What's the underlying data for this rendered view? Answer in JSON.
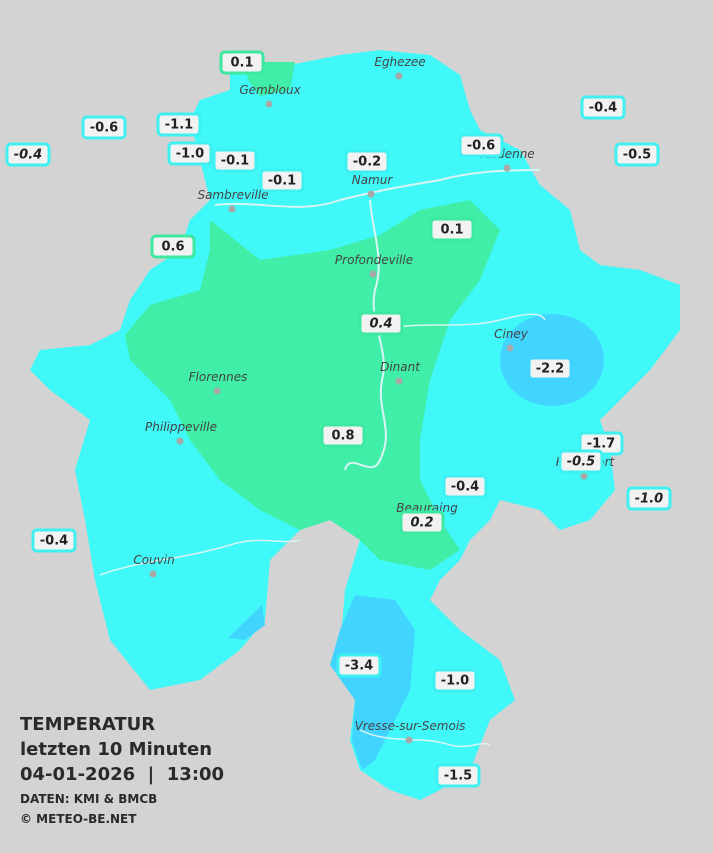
{
  "legend": {
    "title": "TEMPERATUR",
    "subtitle": "letzten 10 Minuten",
    "datetime": "04-01-2026  |  13:00",
    "source": "DATEN: KMI & BMCB",
    "copyright": "© METEO-BE.NET"
  },
  "cities": [
    "Eghezee",
    "Gembloux",
    "Andenne",
    "Namur",
    "Sambreville",
    "Profondeville",
    "Ciney",
    "Dinant",
    "Florennes",
    "Philippeville",
    "Rochefort",
    "Beauraing",
    "Couvin",
    "Vresse-sur-Semois"
  ],
  "stations": [
    {
      "label": "0.1",
      "color": "#3fe8a0"
    },
    {
      "label": "-0.4",
      "color": "#3ff0f0"
    },
    {
      "label": "-0.6",
      "color": "#3ff0f0"
    },
    {
      "label": "-1.1",
      "color": "#3ff0f0"
    },
    {
      "label": "-0.4",
      "color": "#3ff0f0",
      "italic": true
    },
    {
      "label": "-1.0",
      "color": "#3ff0f0"
    },
    {
      "label": "-0.1",
      "color": "#3ff0f0"
    },
    {
      "label": "-0.2",
      "color": "#3ff0f0"
    },
    {
      "label": "-0.6",
      "color": "#3ff0f0"
    },
    {
      "label": "-0.5",
      "color": "#3ff0f0"
    },
    {
      "label": "-0.1",
      "color": "#3ff0f0"
    },
    {
      "label": "0.1",
      "color": "#3fe8a0"
    },
    {
      "label": "0.6",
      "color": "#3fe8a0"
    },
    {
      "label": "0.4",
      "color": "#3fe8a0",
      "italic": true
    },
    {
      "label": "-2.2",
      "color": "#40d4ff"
    },
    {
      "label": "0.8",
      "color": "#3fe8a0"
    },
    {
      "label": "-1.7",
      "color": "#3ff0f0"
    },
    {
      "label": "-0.5",
      "color": "#3ff0f0",
      "italic": true
    },
    {
      "label": "-1.0",
      "color": "#3ff0f0",
      "italic": true
    },
    {
      "label": "-0.4",
      "color": "#3ff0f0"
    },
    {
      "label": "0.2",
      "color": "#3fe8a0",
      "italic": true
    },
    {
      "label": "-0.4",
      "color": "#3ff0f0"
    },
    {
      "label": "-3.4",
      "color": "#3ff0f0"
    },
    {
      "label": "-1.0",
      "color": "#3ff0f0"
    },
    {
      "label": "-1.5",
      "color": "#3ff0f0"
    }
  ]
}
